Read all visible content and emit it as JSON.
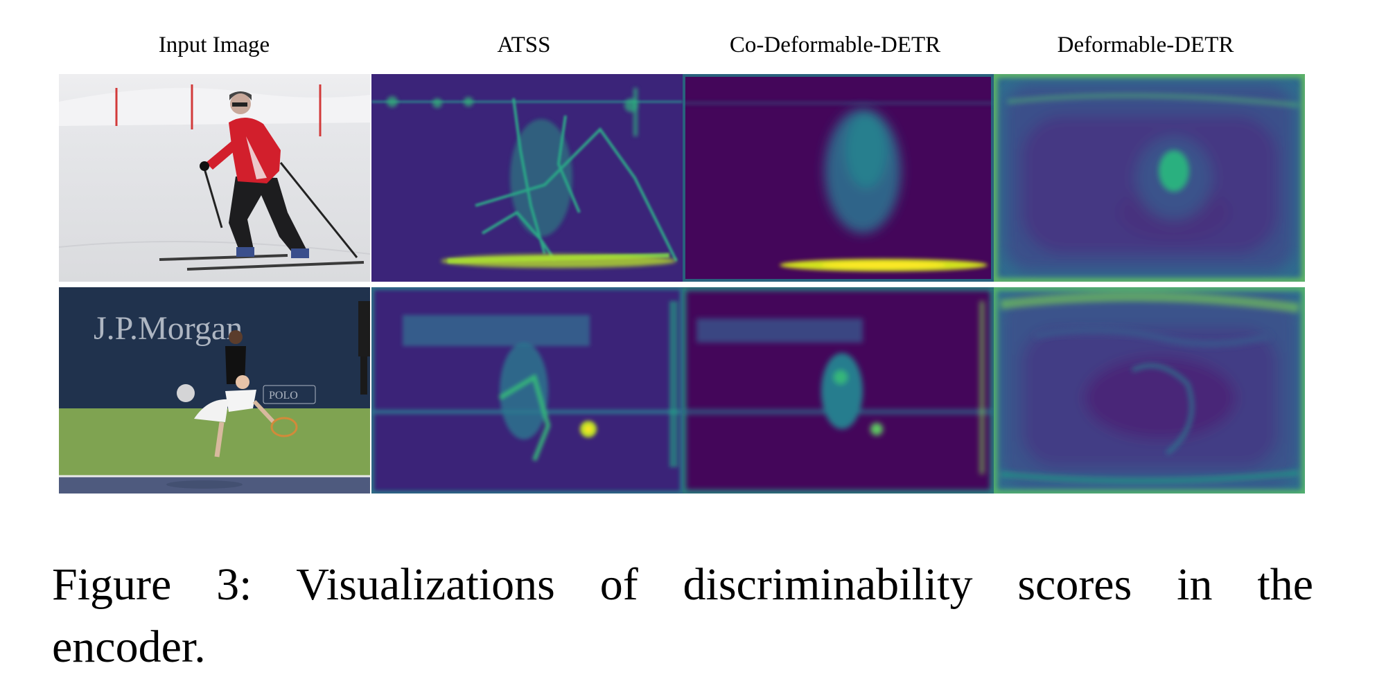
{
  "figure": {
    "columns": [
      "Input Image",
      "ATSS",
      "Co-Deformable-DETR",
      "Deformable-DETR"
    ],
    "rows": [
      {
        "scene": "skier on snow slope",
        "panels": [
          "photo",
          "heatmap",
          "heatmap",
          "heatmap"
        ]
      },
      {
        "scene": "tennis player serving",
        "logo_text": "J.P.Morgan",
        "banner_text": "POLO",
        "panels": [
          "photo",
          "heatmap",
          "heatmap",
          "heatmap"
        ]
      }
    ],
    "colormap": {
      "low": "#3b0f6f",
      "mid": "#21908d",
      "high": "#fde725"
    }
  },
  "caption": {
    "line1": "Figure 3:  Visualizations of discriminability scores in the",
    "line2": "encoder."
  }
}
